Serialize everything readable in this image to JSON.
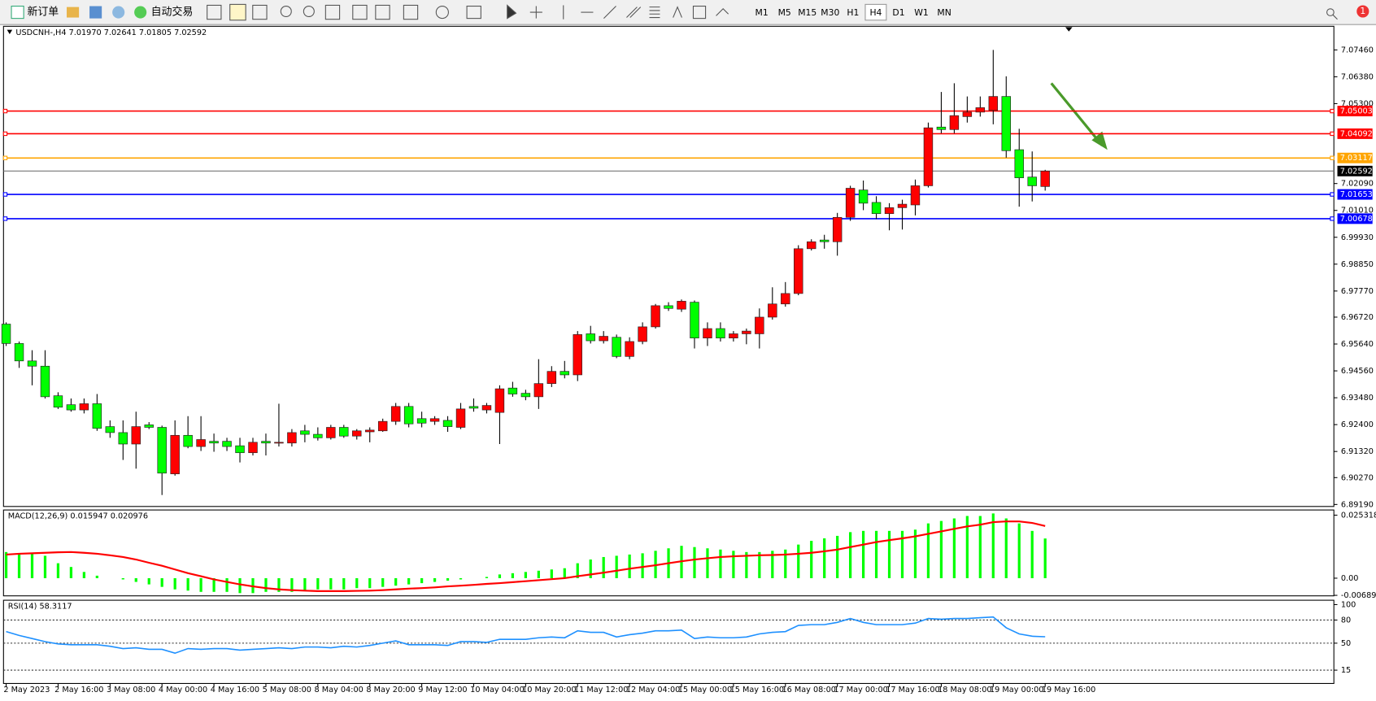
{
  "toolbar": {
    "new_order": "新订单",
    "auto_trading": "自动交易",
    "timeframes": [
      "M1",
      "M5",
      "M15",
      "M30",
      "H1",
      "H4",
      "D1",
      "W1",
      "MN"
    ],
    "active_timeframe": "H4",
    "notification_count": "1"
  },
  "chart_data": [
    {
      "type": "candlestick",
      "header": "USDCNH-,H4  7.01970 7.02641 7.01805 7.02592",
      "categories": [
        "2 May 2023",
        null,
        null,
        null,
        "2 May 16:00",
        null,
        null,
        null,
        "3 May 08:00",
        null,
        null,
        null,
        "4 May 00:00",
        null,
        null,
        null,
        "4 May 16:00",
        null,
        null,
        null,
        "5 May 08:00",
        null,
        null,
        null,
        "8 May 04:00",
        null,
        null,
        null,
        "8 May 20:00",
        null,
        null,
        null,
        "9 May 12:00",
        null,
        null,
        null,
        "10 May 04:00",
        null,
        null,
        null,
        "10 May 20:00",
        null,
        null,
        null,
        "11 May 12:00",
        null,
        null,
        null,
        "12 May 04:00",
        null,
        null,
        null,
        "15 May 00:00",
        null,
        null,
        null,
        "15 May 16:00",
        null,
        null,
        null,
        "16 May 08:00",
        null,
        null,
        null,
        "17 May 00:00",
        null,
        null,
        null,
        "17 May 16:00",
        null,
        null,
        null,
        "18 May 08:00",
        null,
        null,
        null,
        "19 May 00:00",
        null,
        null,
        null,
        "19 May 16:00"
      ],
      "open": [
        6.9644,
        6.9566,
        6.9496,
        6.9475,
        6.9356,
        6.932,
        6.9299,
        6.9324,
        6.9232,
        6.9208,
        6.9162,
        6.9239,
        6.9229,
        6.9042,
        6.9197,
        6.9152,
        6.9173,
        6.9173,
        6.9155,
        6.9127,
        6.9173,
        6.9166,
        6.9166,
        6.9215,
        6.9201,
        6.9187,
        6.9229,
        6.9194,
        6.9211,
        6.9215,
        6.9253,
        6.9313,
        6.9264,
        6.9253,
        6.9257,
        6.9229,
        6.9313,
        6.9299,
        6.9289,
        6.9387,
        6.9366,
        6.9352,
        6.9405,
        6.9454,
        6.944,
        6.9605,
        6.9577,
        6.9591,
        6.9514,
        6.9574,
        6.9633,
        6.9718,
        6.9704,
        6.9732,
        6.9588,
        6.9626,
        6.9588,
        6.9605,
        6.9605,
        6.9672,
        6.9725,
        6.9767,
        6.9947,
        6.9982,
        6.9975,
        7.0073,
        7.0183,
        7.0133,
        7.0088,
        7.0112,
        7.0123,
        7.02,
        7.0436,
        7.0426,
        7.0478,
        7.0496,
        7.0503,
        7.0559,
        7.0345,
        7.0235,
        7.0197
      ],
      "high": [
        6.9651,
        6.9574,
        6.9539,
        6.9539,
        6.937,
        6.9345,
        6.9345,
        6.9363,
        6.9257,
        6.9257,
        6.9292,
        6.925,
        6.9236,
        6.9257,
        6.9274,
        6.9274,
        6.9204,
        6.9187,
        6.9187,
        6.9187,
        6.9204,
        6.9324,
        6.9222,
        6.9239,
        6.9229,
        6.9239,
        6.9239,
        6.9222,
        6.9229,
        6.9264,
        6.9327,
        6.9327,
        6.9292,
        6.9274,
        6.9274,
        6.9327,
        6.9345,
        6.9327,
        6.9398,
        6.9412,
        6.938,
        6.9503,
        6.9475,
        6.9496,
        6.9616,
        6.9637,
        6.9616,
        6.9602,
        6.9591,
        6.9651,
        6.9725,
        6.9732,
        6.9743,
        6.9739,
        6.9651,
        6.9651,
        6.9616,
        6.9626,
        6.9707,
        6.9792,
        6.9813,
        6.9961,
        6.9985,
        7.0003,
        7.0091,
        7.02,
        7.0221,
        7.0158,
        7.013,
        7.0144,
        7.0225,
        7.0454,
        7.0577,
        7.0612,
        7.0559,
        7.0559,
        7.0746,
        7.064,
        7.0429,
        7.0338,
        7.02641
      ],
      "low": [
        6.9556,
        6.9468,
        6.9398,
        6.9345,
        6.9303,
        6.9292,
        6.9285,
        6.9215,
        6.9187,
        6.9098,
        6.9063,
        6.9222,
        6.8957,
        6.9035,
        6.9145,
        6.9134,
        6.9131,
        6.9134,
        6.9088,
        6.9116,
        6.9116,
        6.9152,
        6.9152,
        6.9169,
        6.9176,
        6.918,
        6.9187,
        6.918,
        6.9169,
        6.9211,
        6.9239,
        6.9229,
        6.9229,
        6.9239,
        6.9211,
        6.9222,
        6.9292,
        6.9285,
        6.9162,
        6.9352,
        6.9338,
        6.9303,
        6.9391,
        6.9426,
        6.9415,
        6.9566,
        6.9566,
        6.9507,
        6.9503,
        6.9563,
        6.9626,
        6.9697,
        6.9693,
        6.9546,
        6.9556,
        6.9574,
        6.9574,
        6.9563,
        6.9546,
        6.9662,
        6.9714,
        6.976,
        6.994,
        6.9947,
        6.9919,
        7.0059,
        7.0102,
        7.0066,
        7.0021,
        7.0024,
        7.0081,
        7.0193,
        7.0411,
        7.0411,
        7.0454,
        7.0478,
        7.0447,
        7.0313,
        7.0116,
        7.0137,
        7.01805
      ],
      "close": [
        6.9566,
        6.9496,
        6.9475,
        6.9352,
        6.931,
        6.9299,
        6.9324,
        6.9225,
        6.9208,
        6.9162,
        6.9232,
        6.9229,
        6.9045,
        6.9197,
        6.9152,
        6.918,
        6.9166,
        6.9152,
        6.9127,
        6.9169,
        6.9166,
        6.9169,
        6.9208,
        6.9201,
        6.9187,
        6.9229,
        6.9194,
        6.9215,
        6.9218,
        6.9253,
        6.9313,
        6.9243,
        6.9246,
        6.9264,
        6.9232,
        6.9303,
        6.9306,
        6.9317,
        6.9384,
        6.9363,
        6.9352,
        6.9405,
        6.9454,
        6.944,
        6.9602,
        6.9577,
        6.9595,
        6.9514,
        6.9574,
        6.9633,
        6.9718,
        6.9707,
        6.9736,
        6.9588,
        6.9626,
        6.9588,
        6.9605,
        6.9616,
        6.9672,
        6.9725,
        6.9767,
        6.9947,
        6.9975,
        6.9975,
        7.0073,
        7.019,
        7.013,
        7.0088,
        7.0112,
        7.0126,
        7.02,
        7.0433,
        7.0426,
        7.0482,
        7.0496,
        7.0514,
        7.0559,
        7.0341,
        7.0232,
        7.02,
        7.02592
      ],
      "up_color": "#ff0000",
      "down_color": "#00ff00",
      "ylim": [
        6.8911,
        7.0841
      ],
      "yticks": [
        {
          "value": 7.0746,
          "label": "7.07460"
        },
        {
          "value": 7.0638,
          "label": "7.06380"
        },
        {
          "value": 7.053,
          "label": "7.05300"
        },
        {
          "value": 7.0209,
          "label": "7.02090"
        },
        {
          "value": 7.0101,
          "label": "7.01010"
        },
        {
          "value": 6.9993,
          "label": "6.99930"
        },
        {
          "value": 6.9885,
          "label": "6.98850"
        },
        {
          "value": 6.9777,
          "label": "6.97770"
        },
        {
          "value": 6.9672,
          "label": "6.96720"
        },
        {
          "value": 6.9564,
          "label": "6.95640"
        },
        {
          "value": 6.9456,
          "label": "6.94560"
        },
        {
          "value": 6.9348,
          "label": "6.93480"
        },
        {
          "value": 6.924,
          "label": "6.92400"
        },
        {
          "value": 6.9132,
          "label": "6.91320"
        },
        {
          "value": 6.9027,
          "label": "6.90270"
        },
        {
          "value": 6.8919,
          "label": "6.89190"
        }
      ],
      "hlines": [
        {
          "value": 7.05003,
          "color": "#ff0000"
        },
        {
          "value": 7.04092,
          "color": "#ff0000"
        },
        {
          "value": 7.03117,
          "color": "#ffa500"
        },
        {
          "value": 7.02592,
          "color": "#000000"
        },
        {
          "value": 7.01653,
          "color": "#0000ff"
        },
        {
          "value": 7.00678,
          "color": "#0000ff"
        }
      ]
    },
    {
      "type": "macd",
      "header": "MACD(12,26,9) 0.015947 0.020976",
      "histogram": [
        0.0105,
        0.01,
        0.01,
        0.009,
        0.006,
        0.0045,
        0.0025,
        0.001,
        0,
        -0.0005,
        -0.0015,
        -0.0025,
        -0.0035,
        -0.0045,
        -0.005,
        -0.0055,
        -0.0055,
        -0.0055,
        -0.006,
        -0.006,
        -0.0055,
        -0.0055,
        -0.0055,
        -0.005,
        -0.0045,
        -0.0045,
        -0.0045,
        -0.004,
        -0.004,
        -0.0035,
        -0.003,
        -0.0025,
        -0.002,
        -0.0015,
        -0.001,
        -0.0005,
        0,
        0.0005,
        0.0015,
        0.002,
        0.0025,
        0.003,
        0.0035,
        0.004,
        0.006,
        0.0075,
        0.0085,
        0.009,
        0.0095,
        0.01,
        0.011,
        0.012,
        0.013,
        0.0125,
        0.012,
        0.0115,
        0.011,
        0.0105,
        0.0105,
        0.011,
        0.0115,
        0.0135,
        0.015,
        0.016,
        0.017,
        0.0185,
        0.019,
        0.019,
        0.019,
        0.019,
        0.0195,
        0.022,
        0.023,
        0.024,
        0.025,
        0.025,
        0.026,
        0.024,
        0.022,
        0.019,
        0.015947
      ],
      "signal": [
        0.0095,
        0.0098,
        0.01,
        0.0102,
        0.0104,
        0.0105,
        0.0102,
        0.0098,
        0.0092,
        0.0085,
        0.0075,
        0.0062,
        0.005,
        0.0035,
        0.002,
        0.0008,
        -0.0005,
        -0.0015,
        -0.0025,
        -0.0033,
        -0.004,
        -0.0045,
        -0.0048,
        -0.005,
        -0.0052,
        -0.0052,
        -0.0052,
        -0.0051,
        -0.005,
        -0.0048,
        -0.0045,
        -0.0042,
        -0.004,
        -0.0037,
        -0.0033,
        -0.003,
        -0.0027,
        -0.0023,
        -0.002,
        -0.0016,
        -0.0012,
        -0.0008,
        -0.0004,
        0,
        0.0008,
        0.0015,
        0.0022,
        0.003,
        0.0038,
        0.0045,
        0.0052,
        0.006,
        0.0068,
        0.0075,
        0.008,
        0.0085,
        0.0088,
        0.009,
        0.0092,
        0.0093,
        0.0095,
        0.0098,
        0.0102,
        0.0108,
        0.0115,
        0.0125,
        0.0135,
        0.0145,
        0.0153,
        0.016,
        0.0168,
        0.0178,
        0.0188,
        0.0198,
        0.0208,
        0.0215,
        0.0225,
        0.0228,
        0.0228,
        0.0222,
        0.020976
      ],
      "histogram_color": "#00ff00",
      "signal_color": "#ff0000",
      "ylim": [
        -0.0071,
        0.0274
      ],
      "yticks": [
        0.025318,
        {
          "value": 0,
          "label": "0.00"
        },
        -0.006894
      ]
    },
    {
      "type": "rsi",
      "header": "RSI(14) 58.3117",
      "values": [
        65,
        60,
        56,
        52,
        49,
        48,
        48,
        48,
        46,
        43,
        44,
        42,
        42,
        37,
        43,
        42,
        43,
        43,
        41,
        42,
        43,
        44,
        43,
        45,
        45,
        44,
        46,
        45,
        47,
        50,
        53,
        48,
        48,
        48,
        47,
        52,
        52,
        51,
        55,
        55,
        55,
        57,
        58,
        57,
        66,
        64,
        64,
        58,
        61,
        63,
        66,
        66,
        67,
        56,
        58,
        57,
        57,
        58,
        62,
        64,
        65,
        73,
        74,
        74,
        77,
        82,
        77,
        74,
        74,
        74,
        76,
        82,
        81,
        82,
        82,
        83,
        84,
        70,
        62,
        59,
        58.3117
      ],
      "color": "#1e90ff",
      "ylim": [
        0,
        100
      ],
      "yticks": [
        100,
        80,
        50,
        15
      ]
    }
  ]
}
